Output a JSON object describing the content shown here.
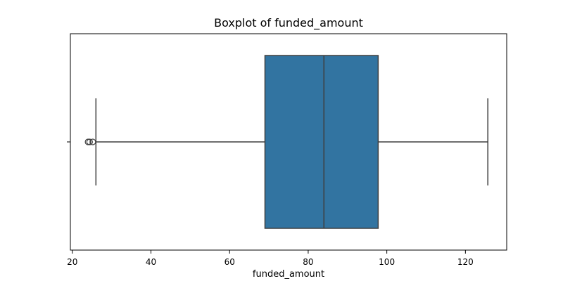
{
  "chart_data": {
    "type": "boxplot",
    "title": "Boxplot of funded_amount",
    "xlabel": "funded_amount",
    "ylabel": "",
    "orientation": "horizontal",
    "xlim": [
      19.5,
      130.5
    ],
    "xticks": [
      20,
      40,
      60,
      80,
      100,
      120
    ],
    "xtick_labels": [
      "20",
      "40",
      "60",
      "80",
      "100",
      "120"
    ],
    "box": {
      "whisker_low": 26.0,
      "q1": 69.0,
      "median": 84.0,
      "q3": 97.8,
      "whisker_high": 125.7
    },
    "outliers": [
      24.0,
      24.4,
      25.2
    ],
    "grid": false,
    "legend": "none"
  },
  "colors": {
    "box_fill": "#3274a1",
    "line": "#3f3f3f",
    "axes": "#000000"
  }
}
